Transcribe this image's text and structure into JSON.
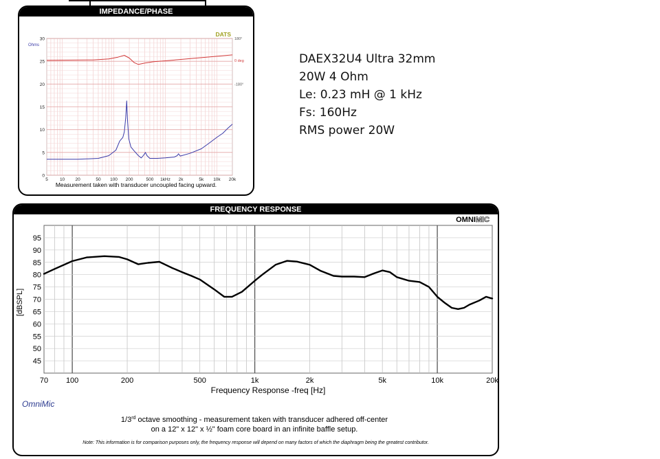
{
  "spec": {
    "lines": [
      "DAEX32U4 Ultra 32mm",
      "20W 4 Ohm",
      "Le: 0.23 mH @ 1 kHz",
      "Fs:  160Hz",
      "RMS power 20W"
    ]
  },
  "impedance_panel": {
    "header": "IMPEDANCE/PHASE",
    "brand": "DATS",
    "caption": "Measurement taken with transducer uncoupled facing upward."
  },
  "frequency_panel": {
    "header": "FREQUENCY RESPONSE",
    "brand_bold": "OMNI",
    "brand_light": "MIC",
    "footer_brand": "OmniMic",
    "note_line1_a": "1/3",
    "note_line1_sup": "rd",
    "note_line1_b": " octave smoothing - measurement taken with transducer adhered off-center",
    "note_line2": "on a 12\" x 12\" x ½\" foam core board in an infinite baffle setup.",
    "disclaimer": "Note: This information is for comparison purposes only, the frequency response will depend on many factors of which the diaphragm being the greatest contributor."
  },
  "chart_data": [
    {
      "type": "line",
      "title": "IMPEDANCE/PHASE",
      "x_scale": "log",
      "xlim": [
        5,
        20000
      ],
      "x_ticks": [
        5,
        10,
        20,
        50,
        100,
        200,
        500,
        1000,
        2000,
        5000,
        10000,
        20000
      ],
      "x_tick_labels": [
        "5",
        "10",
        "20",
        "50",
        "100",
        "200",
        "500",
        "1kHz",
        "2k",
        "5k",
        "10k",
        "20k"
      ],
      "ylabel_left": "Ohms",
      "ylim_left": [
        0,
        30
      ],
      "y_ticks_left": [
        0,
        5,
        10,
        15,
        20,
        25,
        30
      ],
      "ylabel_right": "deg",
      "y_tick_labels_right": [
        "180°",
        "0 deg",
        "-180°"
      ],
      "grid": true,
      "series": [
        {
          "name": "Ohms",
          "color": "#3a3aa8",
          "points": [
            [
              5,
              3.5
            ],
            [
              20,
              3.5
            ],
            [
              50,
              3.7
            ],
            [
              80,
              4.3
            ],
            [
              110,
              5.5
            ],
            [
              130,
              7.5
            ],
            [
              150,
              8.3
            ],
            [
              160,
              9.5
            ],
            [
              170,
              12.5
            ],
            [
              178,
              16.3
            ],
            [
              185,
              12
            ],
            [
              195,
              8
            ],
            [
              215,
              6.2
            ],
            [
              250,
              5.3
            ],
            [
              300,
              4.3
            ],
            [
              340,
              3.8
            ],
            [
              380,
              4.4
            ],
            [
              410,
              5.0
            ],
            [
              440,
              4.3
            ],
            [
              500,
              3.7
            ],
            [
              700,
              3.7
            ],
            [
              1000,
              3.8
            ],
            [
              1500,
              4.0
            ],
            [
              1700,
              4.3
            ],
            [
              1800,
              4.7
            ],
            [
              1950,
              4.2
            ],
            [
              3000,
              4.8
            ],
            [
              5000,
              5.8
            ],
            [
              7000,
              7.0
            ],
            [
              10000,
              8.3
            ],
            [
              13000,
              9.2
            ],
            [
              16000,
              10.2
            ],
            [
              20000,
              11.2
            ]
          ]
        },
        {
          "color": "#d23a3a",
          "points": [
            [
              5,
              25.2
            ],
            [
              40,
              25.3
            ],
            [
              80,
              25.5
            ],
            [
              120,
              25.9
            ],
            [
              160,
              26.3
            ],
            [
              200,
              25.7
            ],
            [
              250,
              24.7
            ],
            [
              300,
              24.3
            ],
            [
              400,
              24.6
            ],
            [
              600,
              24.9
            ],
            [
              1000,
              25.1
            ],
            [
              2000,
              25.4
            ],
            [
              5000,
              25.8
            ],
            [
              10000,
              26.1
            ],
            [
              20000,
              26.4
            ]
          ]
        }
      ]
    },
    {
      "type": "line",
      "title": "FREQUENCY RESPONSE",
      "xlabel": "Frequency Response -freq [Hz]",
      "ylabel": "[dBSPL]",
      "x_scale": "log",
      "xlim": [
        70,
        20000
      ],
      "x_ticks": [
        70,
        100,
        200,
        500,
        1000,
        2000,
        5000,
        10000,
        20000
      ],
      "x_tick_labels": [
        "70",
        "100",
        "200",
        "500",
        "1k",
        "2k",
        "5k",
        "10k",
        "20k"
      ],
      "ylim": [
        40,
        100
      ],
      "y_ticks": [
        45,
        50,
        55,
        60,
        65,
        70,
        75,
        80,
        85,
        90,
        95
      ],
      "grid": true,
      "series": [
        {
          "color": "#000000",
          "points": [
            [
              70,
              80.3
            ],
            [
              80,
              82.3
            ],
            [
              100,
              85.5
            ],
            [
              120,
              87.0
            ],
            [
              150,
              87.5
            ],
            [
              180,
              87.2
            ],
            [
              200,
              86.2
            ],
            [
              230,
              84.2
            ],
            [
              260,
              84.8
            ],
            [
              300,
              85.2
            ],
            [
              350,
              82.8
            ],
            [
              400,
              81.0
            ],
            [
              450,
              79.5
            ],
            [
              500,
              78.0
            ],
            [
              600,
              74.0
            ],
            [
              680,
              71.0
            ],
            [
              750,
              71.0
            ],
            [
              850,
              73.0
            ],
            [
              1000,
              77.5
            ],
            [
              1100,
              80.0
            ],
            [
              1300,
              84.0
            ],
            [
              1500,
              85.6
            ],
            [
              1700,
              85.3
            ],
            [
              2000,
              84.0
            ],
            [
              2300,
              81.5
            ],
            [
              2700,
              79.5
            ],
            [
              3000,
              79.2
            ],
            [
              3500,
              79.2
            ],
            [
              4000,
              79.0
            ],
            [
              4500,
              80.5
            ],
            [
              5000,
              81.7
            ],
            [
              5500,
              81.0
            ],
            [
              6000,
              79.0
            ],
            [
              7000,
              77.5
            ],
            [
              8000,
              77.0
            ],
            [
              9000,
              75.0
            ],
            [
              10000,
              71.0
            ],
            [
              11000,
              68.5
            ],
            [
              12000,
              66.5
            ],
            [
              13000,
              66.0
            ],
            [
              14000,
              66.5
            ],
            [
              15000,
              67.8
            ],
            [
              17000,
              69.5
            ],
            [
              18500,
              71.0
            ],
            [
              19500,
              70.5
            ],
            [
              20000,
              70.3
            ]
          ]
        }
      ]
    }
  ]
}
